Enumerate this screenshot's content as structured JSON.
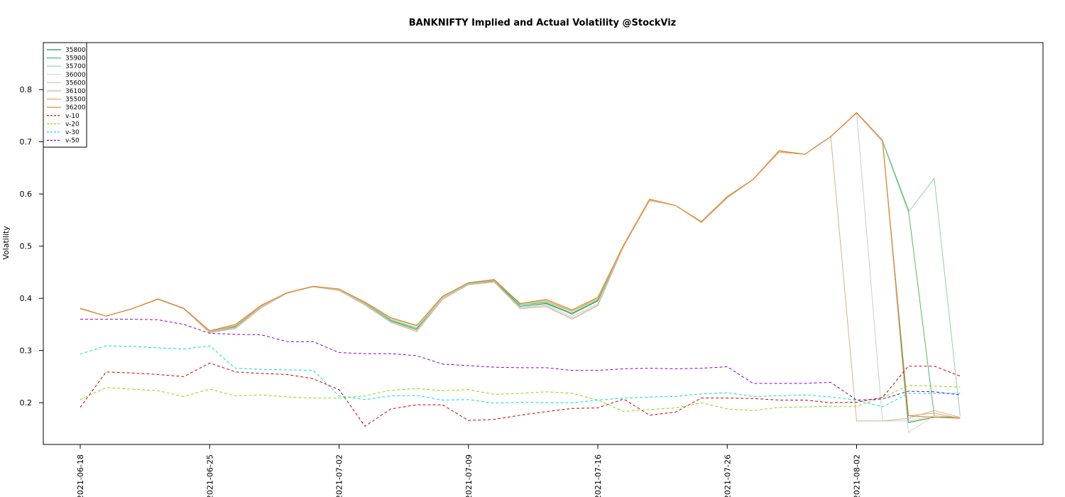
{
  "chart_data": {
    "type": "line",
    "title": "BANKNIFTY Implied and Actual Volatility @StockViz",
    "xlabel": "",
    "ylabel": "Volatility",
    "ylim": [
      0.12,
      0.89
    ],
    "yticks": [
      0.2,
      0.3,
      0.4,
      0.5,
      0.6,
      0.7,
      0.8
    ],
    "grid": false,
    "legend_position": "top-left",
    "x": [
      "2021-06-18",
      "2021-06-21",
      "2021-06-22",
      "2021-06-23",
      "2021-06-24",
      "2021-06-25",
      "2021-06-28",
      "2021-06-29",
      "2021-06-30",
      "2021-07-01",
      "2021-07-02",
      "2021-07-05",
      "2021-07-06",
      "2021-07-07",
      "2021-07-08",
      "2021-07-09",
      "2021-07-12",
      "2021-07-13",
      "2021-07-14",
      "2021-07-15",
      "2021-07-16",
      "2021-07-19",
      "2021-07-20",
      "2021-07-22",
      "2021-07-23",
      "2021-07-26",
      "2021-07-27",
      "2021-07-28",
      "2021-07-29",
      "2021-07-30",
      "2021-08-02",
      "2021-08-03",
      "2021-08-04",
      "2021-08-05",
      "2021-08-06"
    ],
    "xticks": [
      "2021-06-18",
      "2021-06-25",
      "2021-07-02",
      "2021-07-09",
      "2021-07-16",
      "2021-07-26",
      "2021-08-02"
    ],
    "series": [
      {
        "name": "35800",
        "color": "#1a9641",
        "dash": "",
        "values": [
          0.38,
          0.366,
          0.38,
          0.398,
          0.38,
          0.335,
          0.345,
          0.385,
          0.41,
          0.423,
          0.417,
          0.39,
          0.357,
          0.34,
          0.4,
          0.428,
          0.433,
          0.385,
          0.39,
          0.37,
          0.395,
          0.5,
          0.588,
          0.578,
          0.546,
          0.593,
          0.628,
          0.68,
          0.676,
          0.71,
          0.755,
          0.7,
          0.162,
          0.172,
          0.172
        ]
      },
      {
        "name": "35900",
        "color": "#52b86a",
        "dash": "",
        "values": [
          0.38,
          0.366,
          0.38,
          0.398,
          0.38,
          0.336,
          0.346,
          0.385,
          0.41,
          0.423,
          0.417,
          0.39,
          0.358,
          0.342,
          0.4,
          0.428,
          0.434,
          0.388,
          0.392,
          0.372,
          0.396,
          0.5,
          0.588,
          0.578,
          0.546,
          0.593,
          0.628,
          0.68,
          0.676,
          0.71,
          0.755,
          0.702,
          0.57,
          0.175,
          0.172
        ]
      },
      {
        "name": "35700",
        "color": "#8fd3a0",
        "dash": "",
        "values": [
          0.38,
          0.366,
          0.38,
          0.398,
          0.38,
          0.336,
          0.347,
          0.386,
          0.41,
          0.423,
          0.417,
          0.391,
          0.36,
          0.344,
          0.401,
          0.429,
          0.434,
          0.39,
          0.394,
          0.375,
          0.398,
          0.501,
          0.588,
          0.578,
          0.546,
          0.593,
          0.628,
          0.68,
          0.676,
          0.71,
          0.755,
          0.7,
          0.565,
          0.63,
          0.175
        ]
      },
      {
        "name": "36000",
        "color": "#d4d4d4",
        "dash": "",
        "values": [
          0.38,
          0.366,
          0.38,
          0.398,
          0.38,
          0.334,
          0.343,
          0.383,
          0.41,
          0.423,
          0.416,
          0.388,
          0.355,
          0.338,
          0.399,
          0.427,
          0.432,
          0.383,
          0.388,
          0.365,
          0.39,
          0.5,
          0.588,
          0.578,
          0.546,
          0.593,
          0.628,
          0.68,
          0.676,
          0.71,
          0.755,
          0.7,
          0.143,
          0.175,
          0.172
        ]
      },
      {
        "name": "35600",
        "color": "#cccccc",
        "dash": "",
        "values": [
          0.38,
          0.366,
          0.38,
          0.398,
          0.38,
          0.335,
          0.344,
          0.384,
          0.41,
          0.423,
          0.416,
          0.389,
          0.356,
          0.339,
          0.4,
          0.427,
          0.432,
          0.382,
          0.386,
          0.362,
          0.388,
          0.5,
          0.588,
          0.578,
          0.546,
          0.593,
          0.628,
          0.68,
          0.676,
          0.71,
          0.755,
          0.165,
          0.165,
          0.175,
          0.172
        ]
      },
      {
        "name": "36100",
        "color": "#d2b48c",
        "dash": "",
        "values": [
          0.38,
          0.366,
          0.38,
          0.398,
          0.38,
          0.334,
          0.342,
          0.382,
          0.41,
          0.422,
          0.415,
          0.387,
          0.354,
          0.336,
          0.398,
          0.426,
          0.431,
          0.38,
          0.384,
          0.36,
          0.386,
          0.5,
          0.587,
          0.578,
          0.545,
          0.592,
          0.628,
          0.68,
          0.676,
          0.71,
          0.165,
          0.165,
          0.17,
          0.185,
          0.172
        ]
      },
      {
        "name": "35500",
        "color": "#f4a460",
        "dash": "",
        "values": [
          0.381,
          0.366,
          0.38,
          0.399,
          0.381,
          0.337,
          0.348,
          0.386,
          0.411,
          0.423,
          0.418,
          0.392,
          0.362,
          0.347,
          0.403,
          0.43,
          0.435,
          0.39,
          0.396,
          0.376,
          0.4,
          0.502,
          0.589,
          0.578,
          0.547,
          0.594,
          0.628,
          0.682,
          0.676,
          0.71,
          0.755,
          0.702,
          0.175,
          0.18,
          0.17
        ]
      },
      {
        "name": "36200",
        "color": "#e08020",
        "dash": "",
        "values": [
          0.381,
          0.366,
          0.38,
          0.399,
          0.381,
          0.338,
          0.35,
          0.387,
          0.411,
          0.423,
          0.418,
          0.393,
          0.363,
          0.348,
          0.404,
          0.43,
          0.436,
          0.39,
          0.398,
          0.378,
          0.402,
          0.503,
          0.59,
          0.578,
          0.547,
          0.595,
          0.628,
          0.683,
          0.676,
          0.71,
          0.756,
          0.703,
          0.175,
          0.172,
          0.17
        ]
      },
      {
        "name": "v-10",
        "color": "#cc0000",
        "dash": "4,3",
        "values": [
          0.191,
          0.259,
          0.257,
          0.254,
          0.25,
          0.276,
          0.259,
          0.256,
          0.254,
          0.246,
          0.225,
          0.155,
          0.188,
          0.196,
          0.196,
          0.166,
          0.168,
          0.176,
          0.183,
          0.189,
          0.19,
          0.207,
          0.176,
          0.182,
          0.209,
          0.209,
          0.208,
          0.205,
          0.205,
          0.2,
          0.201,
          0.21,
          0.27,
          0.27,
          0.251
        ]
      },
      {
        "name": "v-20",
        "color": "#7fdd00",
        "dash": "4,3",
        "values": [
          0.206,
          0.229,
          0.226,
          0.223,
          0.212,
          0.226,
          0.213,
          0.215,
          0.211,
          0.209,
          0.209,
          0.213,
          0.224,
          0.227,
          0.223,
          0.225,
          0.216,
          0.218,
          0.221,
          0.218,
          0.205,
          0.183,
          0.187,
          0.19,
          0.2,
          0.188,
          0.185,
          0.191,
          0.192,
          0.193,
          0.193,
          0.21,
          0.233,
          0.232,
          0.23
        ]
      },
      {
        "name": "v-30",
        "color": "#00dddd",
        "dash": "4,3",
        "values": [
          0.293,
          0.309,
          0.308,
          0.305,
          0.303,
          0.309,
          0.266,
          0.264,
          0.263,
          0.262,
          0.213,
          0.206,
          0.213,
          0.214,
          0.205,
          0.206,
          0.199,
          0.201,
          0.2,
          0.2,
          0.205,
          0.209,
          0.211,
          0.212,
          0.217,
          0.219,
          0.212,
          0.213,
          0.215,
          0.211,
          0.205,
          0.192,
          0.218,
          0.218,
          0.218
        ]
      },
      {
        "name": "v-50",
        "color": "#8800cc",
        "dash": "4,3",
        "values": [
          0.36,
          0.36,
          0.36,
          0.359,
          0.35,
          0.333,
          0.331,
          0.33,
          0.317,
          0.317,
          0.296,
          0.294,
          0.294,
          0.29,
          0.274,
          0.271,
          0.268,
          0.267,
          0.267,
          0.262,
          0.262,
          0.265,
          0.266,
          0.265,
          0.266,
          0.269,
          0.237,
          0.237,
          0.237,
          0.239,
          0.205,
          0.207,
          0.222,
          0.221,
          0.215
        ]
      }
    ]
  }
}
